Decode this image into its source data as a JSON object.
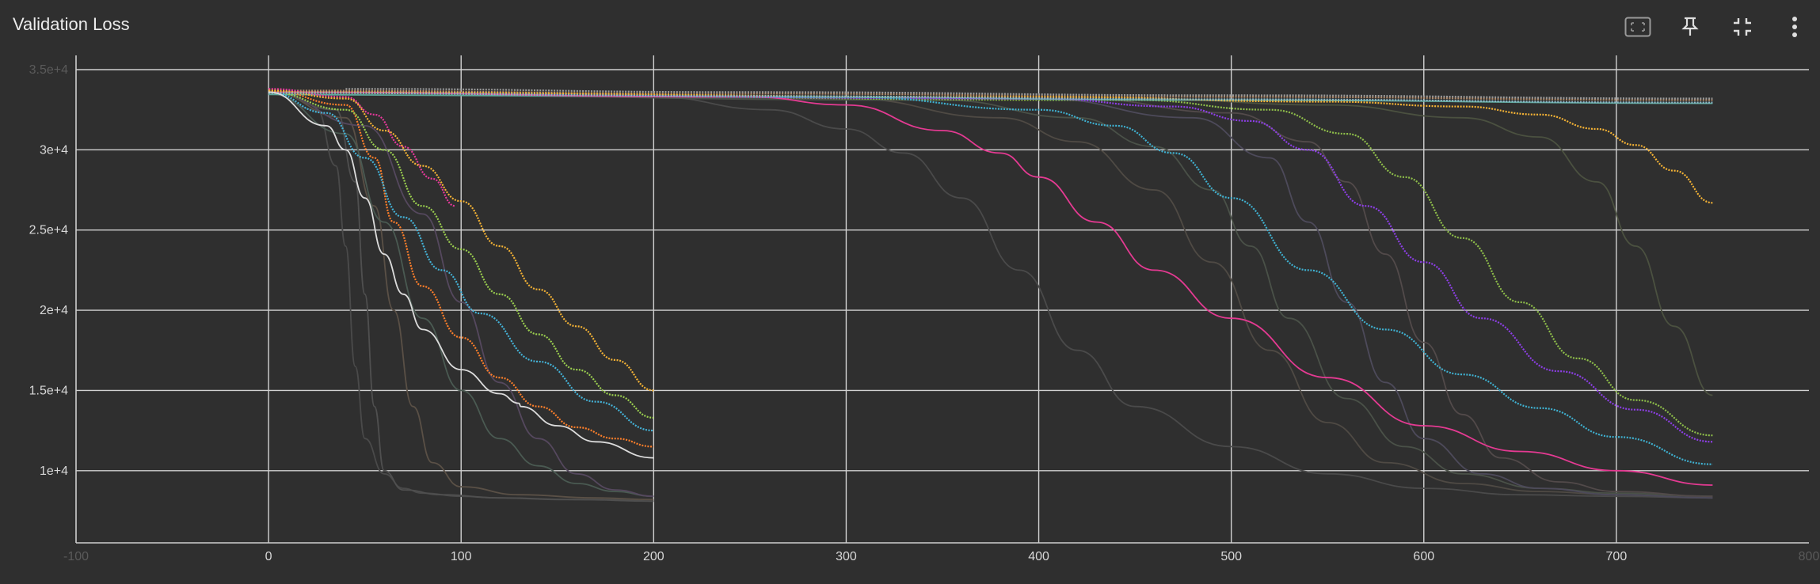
{
  "card": {
    "title": "Validation Loss",
    "toolbar": [
      {
        "name": "fit-domain-icon",
        "label": ""
      },
      {
        "name": "pin-icon",
        "label": ""
      },
      {
        "name": "collapse-icon",
        "label": ""
      },
      {
        "name": "more-vert-icon",
        "label": ""
      }
    ]
  },
  "chart_data": {
    "type": "line",
    "title": "Validation Loss",
    "xlabel": "",
    "ylabel": "",
    "xlim": [
      -100,
      800
    ],
    "ylim": [
      5500,
      35000
    ],
    "x_ticks": [
      {
        "value": -100,
        "label": "-100",
        "dim": true
      },
      {
        "value": 0,
        "label": "0"
      },
      {
        "value": 100,
        "label": "100"
      },
      {
        "value": 200,
        "label": "200"
      },
      {
        "value": 300,
        "label": "300"
      },
      {
        "value": 400,
        "label": "400"
      },
      {
        "value": 500,
        "label": "500"
      },
      {
        "value": 600,
        "label": "600"
      },
      {
        "value": 700,
        "label": "700"
      },
      {
        "value": 800,
        "label": "800",
        "dim": true
      }
    ],
    "y_ticks": [
      {
        "value": 10000,
        "label": "1e+4"
      },
      {
        "value": 15000,
        "label": "1.5e+4"
      },
      {
        "value": 20000,
        "label": "2e+4"
      },
      {
        "value": 25000,
        "label": "2.5e+4"
      },
      {
        "value": 30000,
        "label": "3e+4"
      },
      {
        "value": 35000,
        "label": "3.5e+4",
        "dim": true
      }
    ],
    "grid": true,
    "legend": "none",
    "series": [
      {
        "color": "#f5b335",
        "dotted": true,
        "x": [
          0,
          40,
          60,
          80,
          100,
          120,
          140,
          160,
          180,
          200
        ],
        "y": [
          33700,
          33200,
          31200,
          29000,
          26800,
          24000,
          21300,
          19000,
          16900,
          15000
        ]
      },
      {
        "color": "#9bcf4f",
        "dotted": true,
        "x": [
          0,
          40,
          60,
          80,
          100,
          120,
          140,
          160,
          180,
          200
        ],
        "y": [
          33600,
          32500,
          30000,
          26500,
          23800,
          21000,
          18500,
          16300,
          14700,
          13300
        ]
      },
      {
        "color": "#44b3d8",
        "dotted": true,
        "x": [
          0,
          30,
          50,
          70,
          90,
          110,
          140,
          170,
          200
        ],
        "y": [
          33600,
          32300,
          29500,
          25800,
          22500,
          19800,
          16800,
          14300,
          12500
        ]
      },
      {
        "color": "#ff7f2a",
        "dotted": true,
        "x": [
          0,
          40,
          55,
          65,
          80,
          100,
          120,
          140,
          160,
          180,
          200
        ],
        "y": [
          33700,
          32800,
          29500,
          25500,
          21500,
          18300,
          15800,
          14000,
          12700,
          12000,
          11500
        ]
      },
      {
        "color": "#dcdcdc",
        "dotted": false,
        "x": [
          0,
          30,
          40,
          50,
          60,
          70,
          80,
          100,
          120,
          130,
          131,
          150,
          170,
          200
        ],
        "y": [
          33600,
          31500,
          30000,
          27000,
          23500,
          21000,
          18800,
          16300,
          14800,
          14200,
          14000,
          12800,
          11800,
          10800
        ]
      },
      {
        "color": "#e8399c",
        "dotted": true,
        "x": [
          0,
          40,
          55,
          70,
          85,
          97
        ],
        "y": [
          33800,
          33300,
          32200,
          30200,
          28200,
          26500
        ]
      },
      {
        "color": "#e43a92",
        "dotted": false,
        "x": [
          0,
          250,
          300,
          350,
          380,
          400,
          430,
          460,
          500,
          550,
          600,
          650,
          700,
          750
        ],
        "y": [
          33600,
          33300,
          32800,
          31200,
          29800,
          28300,
          25500,
          22500,
          19500,
          15800,
          12800,
          11200,
          10000,
          9100
        ]
      },
      {
        "color": "#3fb1d1",
        "dotted": true,
        "x": [
          0,
          300,
          400,
          440,
          470,
          500,
          540,
          580,
          620,
          660,
          700,
          750
        ],
        "y": [
          33600,
          33300,
          32500,
          31500,
          29800,
          27000,
          22500,
          18800,
          16000,
          13900,
          12100,
          10400
        ]
      },
      {
        "color": "#8e3fe8",
        "dotted": true,
        "x": [
          0,
          400,
          470,
          510,
          540,
          570,
          600,
          630,
          670,
          710,
          750
        ],
        "y": [
          33600,
          33200,
          32700,
          31800,
          30000,
          26500,
          23000,
          19500,
          16200,
          13800,
          11800
        ]
      },
      {
        "color": "#8fbf4a",
        "dotted": true,
        "x": [
          0,
          450,
          520,
          560,
          590,
          620,
          650,
          680,
          710,
          750
        ],
        "y": [
          33600,
          33100,
          32500,
          31000,
          28300,
          24500,
          20500,
          17000,
          14400,
          12200
        ]
      },
      {
        "color": "#f5b335",
        "dotted": true,
        "x": [
          0,
          400,
          550,
          620,
          660,
          690,
          710,
          730,
          750
        ],
        "y": [
          33600,
          33300,
          33000,
          32700,
          32200,
          31300,
          30300,
          28700,
          26700
        ]
      },
      {
        "color": "#8cb7c9",
        "dotted": true,
        "x": [
          0,
          250,
          500,
          750
        ],
        "y": [
          33550,
          33350,
          33150,
          32950
        ]
      },
      {
        "color": "#5fa99c",
        "dotted": false,
        "x": [
          0,
          250,
          500,
          750
        ],
        "y": [
          33450,
          33300,
          33100,
          32900
        ]
      },
      {
        "color": "#b08a6a",
        "dotted": true,
        "x": [
          0,
          250,
          500,
          750
        ],
        "y": [
          33700,
          33500,
          33300,
          33100
        ]
      },
      {
        "color": "#9a9a9a",
        "dotted": true,
        "x": [
          40,
          250,
          500,
          750
        ],
        "y": [
          33800,
          33600,
          33400,
          33200
        ]
      },
      {
        "color": "#4a4a4a",
        "dotted": false,
        "x": [
          0,
          25,
          35,
          40,
          45,
          50,
          60,
          70,
          80,
          100,
          120,
          150,
          180,
          200
        ],
        "y": [
          33500,
          32500,
          29000,
          24000,
          16500,
          12000,
          9800,
          8900,
          8600,
          8400,
          8300,
          8200,
          8200,
          8100
        ]
      },
      {
        "color": "#4f4f4f",
        "dotted": false,
        "x": [
          0,
          35,
          45,
          50,
          55,
          60,
          70,
          90,
          120,
          160,
          200
        ],
        "y": [
          33600,
          32500,
          28000,
          21000,
          14000,
          10000,
          8800,
          8500,
          8300,
          8200,
          8100
        ]
      },
      {
        "color": "#5a5046",
        "dotted": false,
        "x": [
          0,
          40,
          55,
          65,
          75,
          85,
          100,
          130,
          170,
          200
        ],
        "y": [
          33600,
          32000,
          26500,
          20000,
          14000,
          10500,
          9000,
          8500,
          8300,
          8200
        ]
      },
      {
        "color": "#4a5a52",
        "dotted": false,
        "x": [
          0,
          40,
          60,
          80,
          100,
          120,
          140,
          160,
          180,
          200
        ],
        "y": [
          33500,
          31000,
          25500,
          19500,
          15000,
          12000,
          10300,
          9200,
          8700,
          8400
        ]
      },
      {
        "color": "#55485e",
        "dotted": false,
        "x": [
          0,
          50,
          80,
          100,
          120,
          140,
          160,
          180,
          200
        ],
        "y": [
          33600,
          31500,
          26000,
          20500,
          15500,
          12000,
          9800,
          8800,
          8400
        ]
      },
      {
        "color": "#4a4a4a",
        "dotted": false,
        "x": [
          0,
          200,
          260,
          300,
          330,
          360,
          390,
          420,
          450,
          500,
          550,
          600,
          650,
          700,
          750
        ],
        "y": [
          33600,
          33300,
          32500,
          31300,
          29800,
          27000,
          22500,
          17500,
          14000,
          11500,
          9800,
          8900,
          8500,
          8400,
          8300
        ]
      },
      {
        "color": "#4f4a44",
        "dotted": false,
        "x": [
          0,
          300,
          380,
          420,
          460,
          490,
          520,
          550,
          580,
          620,
          660,
          700,
          750
        ],
        "y": [
          33600,
          33200,
          32000,
          30500,
          27500,
          23000,
          17500,
          13000,
          10500,
          9200,
          8700,
          8500,
          8300
        ]
      },
      {
        "color": "#4a5148",
        "dotted": false,
        "x": [
          0,
          350,
          420,
          460,
          490,
          510,
          530,
          560,
          590,
          620,
          660,
          700,
          750
        ],
        "y": [
          33500,
          33100,
          32000,
          30200,
          27500,
          24000,
          19500,
          14500,
          11500,
          9800,
          8900,
          8600,
          8400
        ]
      },
      {
        "color": "#4d4a5a",
        "dotted": false,
        "x": [
          0,
          400,
          480,
          520,
          540,
          560,
          580,
          600,
          630,
          660,
          700,
          750
        ],
        "y": [
          33600,
          33200,
          32000,
          29500,
          25500,
          20500,
          15500,
          12000,
          9800,
          8900,
          8500,
          8300
        ]
      },
      {
        "color": "#524a4a",
        "dotted": false,
        "x": [
          0,
          420,
          500,
          540,
          560,
          580,
          600,
          620,
          640,
          670,
          700,
          750
        ],
        "y": [
          33600,
          33200,
          32300,
          30500,
          28000,
          23500,
          18000,
          13500,
          10800,
          9300,
          8700,
          8400
        ]
      },
      {
        "color": "#4b5140",
        "dotted": false,
        "x": [
          0,
          450,
          550,
          620,
          660,
          690,
          710,
          730,
          750
        ],
        "y": [
          33600,
          33200,
          32800,
          32000,
          30800,
          28000,
          24000,
          19000,
          14700
        ]
      }
    ]
  }
}
